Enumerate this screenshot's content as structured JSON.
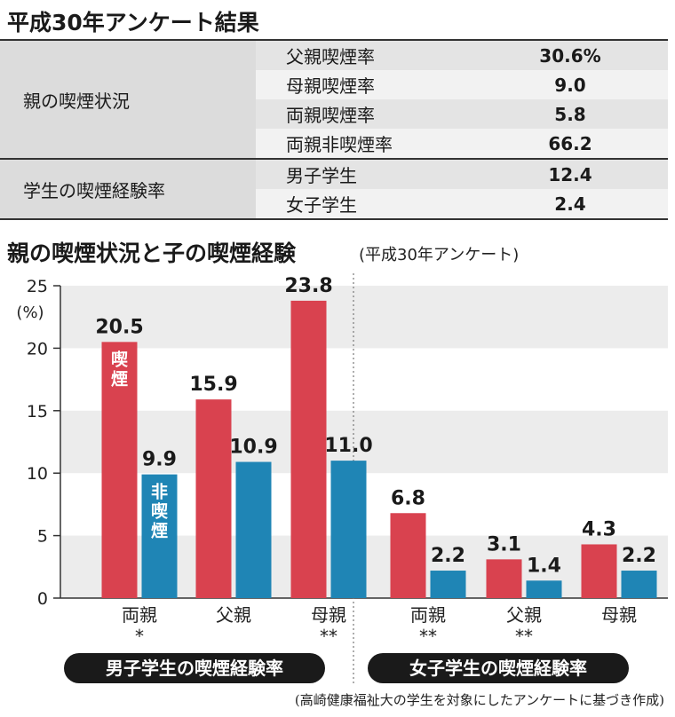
{
  "header": {
    "title": "平成30年アンケート結果"
  },
  "stats_table": {
    "groups": [
      {
        "label": "親の喫煙状況",
        "rows": [
          {
            "item": "父親喫煙率",
            "value": "30.6%"
          },
          {
            "item": "母親喫煙率",
            "value": "9.0"
          },
          {
            "item": "両親喫煙率",
            "value": "5.8"
          },
          {
            "item": "両親非喫煙率",
            "value": "66.2"
          }
        ]
      },
      {
        "label": "学生の喫煙経験率",
        "rows": [
          {
            "item": "男子学生",
            "value": "12.4"
          },
          {
            "item": "女子学生",
            "value": "2.4"
          }
        ]
      }
    ]
  },
  "chart_data": {
    "type": "bar",
    "title": "親の喫煙状況と子の喫煙経験",
    "subtitle": "(平成30年アンケート)",
    "ylabel": "(%)",
    "ylim": [
      0,
      25
    ],
    "yticks": [
      "0",
      "5",
      "10",
      "15",
      "20",
      "25"
    ],
    "categories": [
      "両親",
      "父親",
      "母親",
      "両親",
      "父親",
      "母親"
    ],
    "category_marks": [
      "*",
      "",
      "**",
      "**",
      "**",
      ""
    ],
    "groups": [
      "男子学生の喫煙経験率",
      "女子学生の喫煙経験率"
    ],
    "series": [
      {
        "name": "喫煙",
        "color": "#d9424f",
        "values": [
          20.5,
          15.9,
          23.8,
          6.8,
          3.1,
          4.3
        ]
      },
      {
        "name": "非喫煙",
        "color": "#1f85b5",
        "values": [
          9.9,
          10.9,
          11.0,
          2.2,
          1.4,
          2.2
        ]
      }
    ],
    "value_labels": {
      "smoke": [
        "20.5",
        "15.9",
        "23.8",
        "6.8",
        "3.1",
        "4.3"
      ],
      "nonsmoke": [
        "9.9",
        "10.9",
        "11.0",
        "2.2",
        "1.4",
        "2.2"
      ]
    },
    "in_bar_labels": {
      "smoke": "喫煙",
      "nonsmoke": "非喫煙"
    },
    "grid": "banded"
  },
  "source_note": "(高崎健康福祉大の学生を対象にしたアンケートに基づき作成)",
  "colors": {
    "smoke": "#d9424f",
    "nonsmoke": "#1f85b5",
    "band": "#ececec",
    "pill": "#1a1a1a"
  }
}
